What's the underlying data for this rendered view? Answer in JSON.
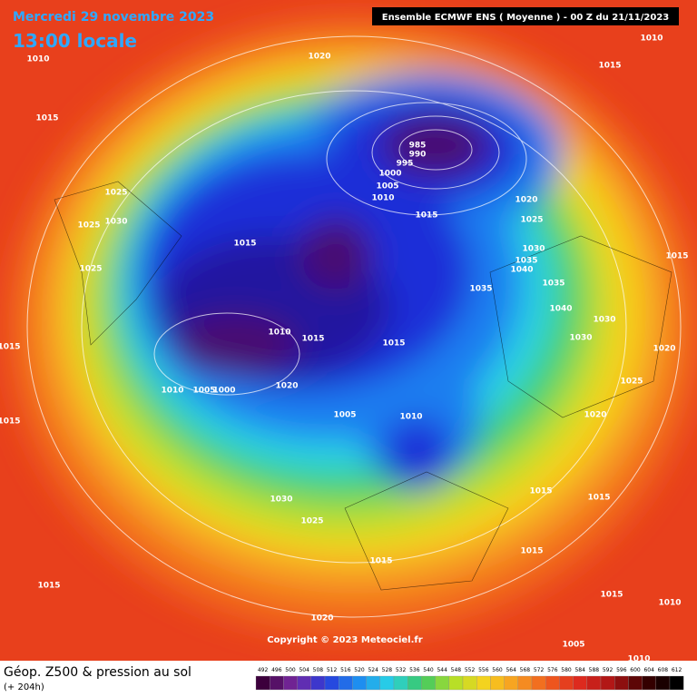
{
  "header": {
    "date": "Mercredi 29 novembre 2023",
    "time": "13:00 locale",
    "model": "Ensemble ECMWF ENS  ( Moyenne )  -  00 Z du 21/11/2023"
  },
  "footer": {
    "title": "Géop. Z500 & pression au sol",
    "lead": "(+ 204h)"
  },
  "copyright": "Copyright © 2023 Meteociel.fr",
  "colorbar": {
    "levels": [
      492,
      496,
      500,
      504,
      508,
      512,
      516,
      520,
      524,
      528,
      532,
      536,
      540,
      544,
      548,
      552,
      556,
      560,
      564,
      568,
      572,
      576,
      580,
      584,
      588,
      592,
      596,
      600,
      604,
      608,
      612
    ]
  },
  "isobar_labels": [
    1010,
    1020,
    1010,
    1015,
    1015,
    985,
    990,
    995,
    1000,
    1005,
    1010,
    1015,
    1020,
    1025,
    1025,
    1030,
    1025,
    1025,
    1015,
    1030,
    1035,
    1040,
    1035,
    1035,
    1040,
    1030,
    1030,
    1015,
    1010,
    1015,
    1015,
    1010,
    1005,
    1000,
    1020,
    1005,
    1010,
    1020,
    1015,
    1030,
    1025,
    1015,
    1015,
    1015,
    1015,
    1015,
    1020,
    1015,
    1010,
    1005,
    1010,
    1025,
    1020,
    1015
  ]
}
